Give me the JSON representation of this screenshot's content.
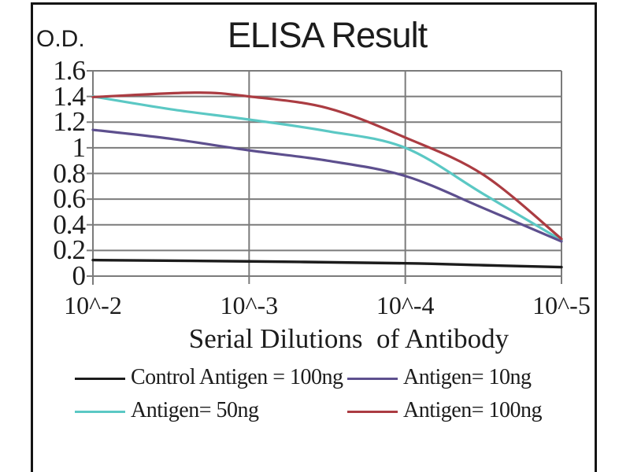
{
  "chart_data": {
    "type": "line",
    "title": "ELISA Result",
    "ylabel": "O.D.",
    "xlabel": "Serial Dilutions  of Antibody",
    "categories": [
      "10^-2",
      "10^-3",
      "10^-4",
      "10^-5"
    ],
    "y_tick_labels": [
      "1.6",
      "1.4",
      "1.2",
      "1",
      "0.8",
      "0.6",
      "0.4",
      "0.2",
      "0"
    ],
    "ylim": [
      0,
      1.6
    ],
    "grid": true,
    "legend_position": "bottom",
    "series": [
      {
        "name": "Control Antigen = 100ng",
        "color": "#1c1c1c",
        "values": [
          0.13,
          0.12,
          0.1,
          0.07
        ],
        "shape_points": [
          [
            0,
            0.125
          ],
          [
            1,
            0.115
          ],
          [
            2,
            0.1
          ],
          [
            2.5,
            0.085
          ],
          [
            3,
            0.07
          ]
        ]
      },
      {
        "name": "Antigen= 10ng",
        "color": "#5d4f8e",
        "values": [
          1.14,
          0.98,
          0.78,
          0.27
        ],
        "shape_points": [
          [
            0,
            1.14
          ],
          [
            0.5,
            1.07
          ],
          [
            1,
            0.98
          ],
          [
            1.5,
            0.9
          ],
          [
            2,
            0.78
          ],
          [
            2.5,
            0.53
          ],
          [
            3,
            0.27
          ]
        ]
      },
      {
        "name": "Antigen= 50ng",
        "color": "#5bc8c4",
        "values": [
          1.4,
          1.22,
          1.0,
          0.28
        ],
        "shape_points": [
          [
            0,
            1.4
          ],
          [
            0.5,
            1.3
          ],
          [
            1,
            1.22
          ],
          [
            1.5,
            1.13
          ],
          [
            2,
            1.0
          ],
          [
            2.5,
            0.64
          ],
          [
            3,
            0.28
          ]
        ]
      },
      {
        "name": "Antigen= 100ng",
        "color": "#ab3c42",
        "values": [
          1.4,
          1.4,
          1.08,
          0.29
        ],
        "shape_points": [
          [
            0,
            1.395
          ],
          [
            0.65,
            1.43
          ],
          [
            1,
            1.4
          ],
          [
            1.5,
            1.31
          ],
          [
            2,
            1.08
          ],
          [
            2.5,
            0.79
          ],
          [
            3,
            0.29
          ]
        ]
      }
    ]
  },
  "colors": {
    "grid": "#7b7b7b",
    "frame": "#141414",
    "text": "#1c1c1c",
    "background": "#ffffff"
  }
}
